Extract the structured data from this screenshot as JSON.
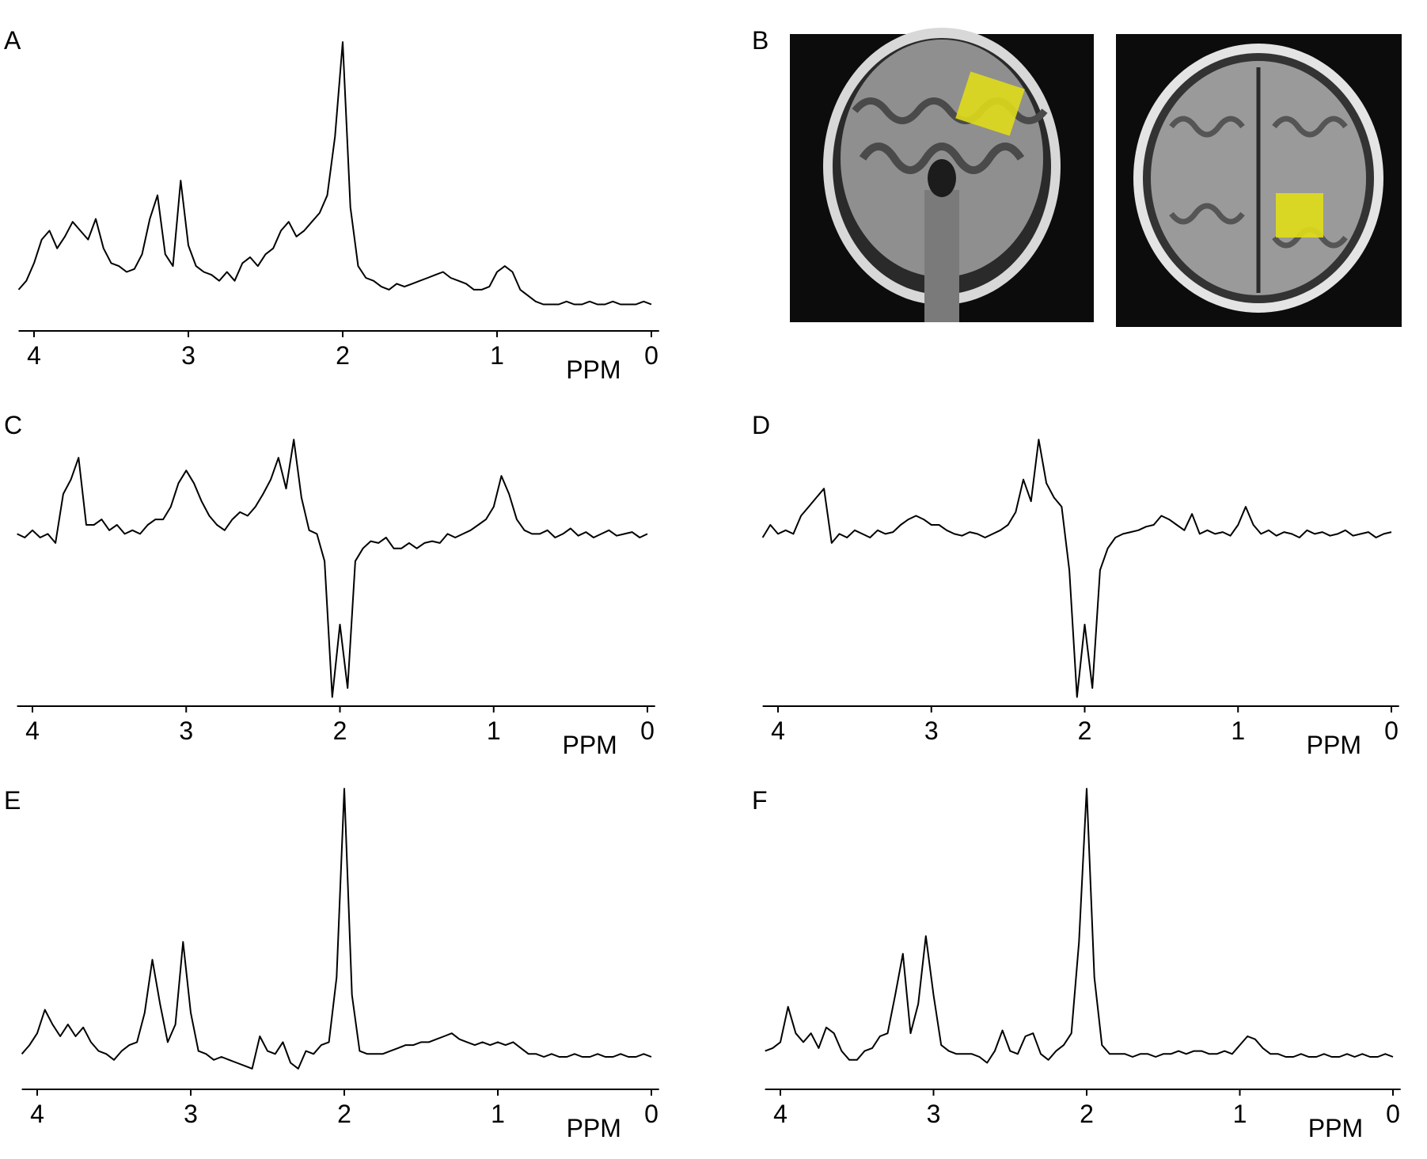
{
  "chart_data": [
    {
      "type": "line",
      "label": "A",
      "xlabel": "PPM",
      "color": "#000000",
      "xlim": [
        4.1,
        -0.05
      ],
      "ylim": [
        0,
        105
      ],
      "xticks": [
        4,
        3,
        2,
        1,
        0
      ],
      "x": [
        4.1,
        4.05,
        4,
        3.95,
        3.9,
        3.85,
        3.8,
        3.75,
        3.7,
        3.65,
        3.6,
        3.55,
        3.5,
        3.45,
        3.4,
        3.35,
        3.3,
        3.25,
        3.2,
        3.15,
        3.1,
        3.05,
        3,
        2.95,
        2.9,
        2.85,
        2.8,
        2.75,
        2.7,
        2.65,
        2.6,
        2.55,
        2.5,
        2.45,
        2.4,
        2.35,
        2.3,
        2.25,
        2.2,
        2.15,
        2.1,
        2.05,
        2,
        1.95,
        1.9,
        1.85,
        1.8,
        1.75,
        1.7,
        1.65,
        1.6,
        1.55,
        1.5,
        1.45,
        1.4,
        1.35,
        1.3,
        1.25,
        1.2,
        1.15,
        1.1,
        1.05,
        1,
        0.95,
        0.9,
        0.85,
        0.8,
        0.75,
        0.7,
        0.65,
        0.6,
        0.55,
        0.5,
        0.45,
        0.4,
        0.35,
        0.3,
        0.25,
        0.2,
        0.15,
        0.1,
        0.05,
        0
      ],
      "values": [
        14,
        17,
        23,
        31,
        34,
        28,
        32,
        37,
        34,
        31,
        38,
        28,
        23,
        22,
        20,
        21,
        26,
        38,
        46,
        26,
        22,
        51,
        29,
        22,
        20,
        19,
        17,
        20,
        17,
        23,
        25,
        22,
        26,
        28,
        34,
        37,
        32,
        34,
        37,
        40,
        46,
        66,
        98,
        42,
        22,
        18,
        17,
        15,
        14,
        16,
        15,
        16,
        17,
        18,
        19,
        20,
        18,
        17,
        16,
        14,
        14,
        15,
        20,
        22,
        20,
        14,
        12,
        10,
        9,
        9,
        9,
        10,
        9,
        9,
        10,
        9,
        9,
        10,
        9,
        9,
        9,
        10,
        9
      ]
    },
    {
      "type": "line",
      "label": "C",
      "xlabel": "PPM",
      "color": "#000000",
      "xlim": [
        4.1,
        -0.05
      ],
      "ylim": [
        -95,
        60
      ],
      "xticks": [
        4,
        3,
        2,
        1,
        0
      ],
      "x": [
        4.1,
        4.05,
        4,
        3.95,
        3.9,
        3.85,
        3.8,
        3.75,
        3.7,
        3.65,
        3.6,
        3.55,
        3.5,
        3.45,
        3.4,
        3.35,
        3.3,
        3.25,
        3.2,
        3.15,
        3.1,
        3.05,
        3,
        2.95,
        2.9,
        2.85,
        2.8,
        2.75,
        2.7,
        2.65,
        2.6,
        2.55,
        2.5,
        2.45,
        2.4,
        2.35,
        2.3,
        2.25,
        2.2,
        2.15,
        2.1,
        2.05,
        2,
        1.95,
        1.9,
        1.85,
        1.8,
        1.75,
        1.7,
        1.65,
        1.6,
        1.55,
        1.5,
        1.45,
        1.4,
        1.35,
        1.3,
        1.25,
        1.2,
        1.15,
        1.1,
        1.05,
        1,
        0.95,
        0.9,
        0.85,
        0.8,
        0.75,
        0.7,
        0.65,
        0.6,
        0.55,
        0.5,
        0.45,
        0.4,
        0.35,
        0.3,
        0.25,
        0.2,
        0.15,
        0.1,
        0.05,
        0
      ],
      "values": [
        0,
        -2,
        2,
        -2,
        0,
        -5,
        22,
        30,
        42,
        5,
        5,
        8,
        2,
        5,
        0,
        2,
        0,
        5,
        8,
        8,
        15,
        28,
        35,
        28,
        18,
        10,
        5,
        2,
        8,
        12,
        10,
        15,
        22,
        30,
        42,
        25,
        52,
        20,
        2,
        0,
        -15,
        -90,
        -50,
        -85,
        -15,
        -8,
        -4,
        -5,
        -2,
        -8,
        -8,
        -5,
        -8,
        -5,
        -4,
        -5,
        0,
        -2,
        0,
        2,
        5,
        8,
        15,
        32,
        22,
        8,
        2,
        0,
        0,
        2,
        -2,
        0,
        3,
        -1,
        1,
        -2,
        0,
        2,
        -1,
        0,
        1,
        -2,
        0
      ]
    },
    {
      "type": "line",
      "label": "D",
      "xlabel": "PPM",
      "color": "#000000",
      "xlim": [
        4.1,
        -0.05
      ],
      "ylim": [
        -95,
        60
      ],
      "xticks": [
        4,
        3,
        2,
        1,
        0
      ],
      "x": [
        4.1,
        4.05,
        4,
        3.95,
        3.9,
        3.85,
        3.8,
        3.75,
        3.7,
        3.65,
        3.6,
        3.55,
        3.5,
        3.45,
        3.4,
        3.35,
        3.3,
        3.25,
        3.2,
        3.15,
        3.1,
        3.05,
        3,
        2.95,
        2.9,
        2.85,
        2.8,
        2.75,
        2.7,
        2.65,
        2.6,
        2.55,
        2.5,
        2.45,
        2.4,
        2.35,
        2.3,
        2.25,
        2.2,
        2.15,
        2.1,
        2.05,
        2,
        1.95,
        1.9,
        1.85,
        1.8,
        1.75,
        1.7,
        1.65,
        1.6,
        1.55,
        1.5,
        1.45,
        1.4,
        1.35,
        1.3,
        1.25,
        1.2,
        1.15,
        1.1,
        1.05,
        1,
        0.95,
        0.9,
        0.85,
        0.8,
        0.75,
        0.7,
        0.65,
        0.6,
        0.55,
        0.5,
        0.45,
        0.4,
        0.35,
        0.3,
        0.25,
        0.2,
        0.15,
        0.1,
        0.05,
        0
      ],
      "values": [
        -2,
        5,
        0,
        2,
        0,
        10,
        15,
        20,
        25,
        -5,
        0,
        -2,
        2,
        0,
        -2,
        2,
        0,
        1,
        5,
        8,
        10,
        8,
        5,
        5,
        2,
        0,
        -1,
        1,
        0,
        -2,
        0,
        2,
        5,
        12,
        30,
        18,
        52,
        28,
        20,
        15,
        -20,
        -90,
        -50,
        -85,
        -20,
        -8,
        -2,
        0,
        1,
        2,
        4,
        5,
        10,
        8,
        5,
        2,
        11,
        0,
        2,
        0,
        1,
        -1,
        5,
        15,
        5,
        0,
        2,
        -1,
        1,
        0,
        -2,
        2,
        0,
        1,
        -1,
        0,
        2,
        -1,
        0,
        1,
        -2,
        0,
        1
      ]
    },
    {
      "type": "line",
      "label": "E",
      "xlabel": "PPM",
      "color": "#000000",
      "xlim": [
        4.1,
        -0.05
      ],
      "ylim": [
        0,
        105
      ],
      "xticks": [
        4,
        3,
        2,
        1,
        0
      ],
      "x": [
        4.1,
        4.05,
        4,
        3.95,
        3.9,
        3.85,
        3.8,
        3.75,
        3.7,
        3.65,
        3.6,
        3.55,
        3.5,
        3.45,
        3.4,
        3.35,
        3.3,
        3.25,
        3.2,
        3.15,
        3.1,
        3.05,
        3,
        2.95,
        2.9,
        2.85,
        2.8,
        2.75,
        2.7,
        2.65,
        2.6,
        2.55,
        2.5,
        2.45,
        2.4,
        2.35,
        2.3,
        2.25,
        2.2,
        2.15,
        2.1,
        2.05,
        2,
        1.95,
        1.9,
        1.85,
        1.8,
        1.75,
        1.7,
        1.65,
        1.6,
        1.55,
        1.5,
        1.45,
        1.4,
        1.35,
        1.3,
        1.25,
        1.2,
        1.15,
        1.1,
        1.05,
        1,
        0.95,
        0.9,
        0.85,
        0.8,
        0.75,
        0.7,
        0.65,
        0.6,
        0.55,
        0.5,
        0.45,
        0.4,
        0.35,
        0.3,
        0.25,
        0.2,
        0.15,
        0.1,
        0.05,
        0
      ],
      "values": [
        12,
        15,
        19,
        27,
        22,
        18,
        22,
        18,
        21,
        16,
        13,
        12,
        10,
        13,
        15,
        16,
        26,
        44,
        29,
        16,
        22,
        50,
        26,
        13,
        12,
        10,
        11,
        10,
        9,
        8,
        7,
        18,
        13,
        12,
        16,
        9,
        7,
        13,
        12,
        15,
        16,
        38,
        102,
        32,
        13,
        12,
        12,
        12,
        13,
        14,
        15,
        15,
        16,
        16,
        17,
        18,
        19,
        17,
        16,
        15,
        16,
        15,
        16,
        15,
        16,
        14,
        12,
        12,
        11,
        12,
        11,
        11,
        12,
        11,
        11,
        12,
        11,
        11,
        12,
        11,
        11,
        12,
        11
      ]
    },
    {
      "type": "line",
      "label": "F",
      "xlabel": "PPM",
      "color": "#000000",
      "xlim": [
        4.1,
        -0.05
      ],
      "ylim": [
        0,
        105
      ],
      "xticks": [
        4,
        3,
        2,
        1,
        0
      ],
      "x": [
        4.1,
        4.05,
        4,
        3.95,
        3.9,
        3.85,
        3.8,
        3.75,
        3.7,
        3.65,
        3.6,
        3.55,
        3.5,
        3.45,
        3.4,
        3.35,
        3.3,
        3.25,
        3.2,
        3.15,
        3.1,
        3.05,
        3,
        2.95,
        2.9,
        2.85,
        2.8,
        2.75,
        2.7,
        2.65,
        2.6,
        2.55,
        2.5,
        2.45,
        2.4,
        2.35,
        2.3,
        2.25,
        2.2,
        2.15,
        2.1,
        2.05,
        2,
        1.95,
        1.9,
        1.85,
        1.8,
        1.75,
        1.7,
        1.65,
        1.6,
        1.55,
        1.5,
        1.45,
        1.4,
        1.35,
        1.3,
        1.25,
        1.2,
        1.15,
        1.1,
        1.05,
        1,
        0.95,
        0.9,
        0.85,
        0.8,
        0.75,
        0.7,
        0.65,
        0.6,
        0.55,
        0.5,
        0.45,
        0.4,
        0.35,
        0.3,
        0.25,
        0.2,
        0.15,
        0.1,
        0.05,
        0
      ],
      "values": [
        13,
        14,
        16,
        28,
        19,
        16,
        19,
        14,
        21,
        19,
        13,
        10,
        10,
        13,
        14,
        18,
        19,
        32,
        46,
        19,
        29,
        52,
        32,
        15,
        13,
        12,
        12,
        12,
        11,
        9,
        13,
        20,
        13,
        12,
        18,
        19,
        12,
        10,
        13,
        15,
        19,
        50,
        102,
        38,
        15,
        12,
        12,
        12,
        11,
        12,
        12,
        11,
        12,
        12,
        13,
        12,
        13,
        13,
        12,
        12,
        13,
        12,
        15,
        18,
        17,
        14,
        12,
        12,
        11,
        11,
        12,
        11,
        11,
        12,
        11,
        11,
        12,
        11,
        12,
        11,
        11,
        12,
        11
      ]
    }
  ],
  "image_panel": {
    "label": "B"
  }
}
